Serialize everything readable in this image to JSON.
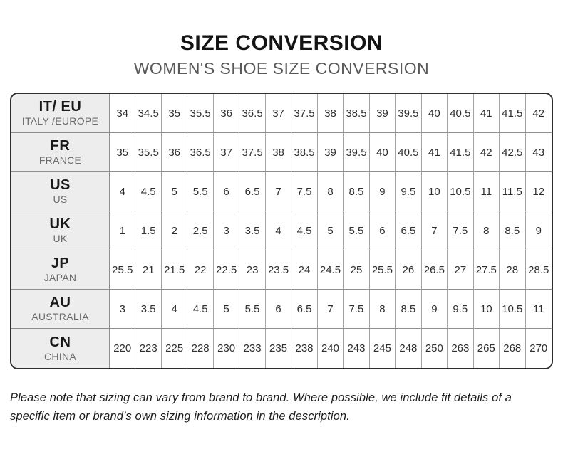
{
  "header": {
    "title": "SIZE CONVERSION",
    "subtitle": "WOMEN'S SHOE SIZE CONVERSION"
  },
  "table": {
    "rows": [
      {
        "code": "IT/ EU",
        "region": "ITALY /EUROPE",
        "values": [
          "34",
          "34.5",
          "35",
          "35.5",
          "36",
          "36.5",
          "37",
          "37.5",
          "38",
          "38.5",
          "39",
          "39.5",
          "40",
          "40.5",
          "41",
          "41.5",
          "42"
        ]
      },
      {
        "code": "FR",
        "region": "FRANCE",
        "values": [
          "35",
          "35.5",
          "36",
          "36.5",
          "37",
          "37.5",
          "38",
          "38.5",
          "39",
          "39.5",
          "40",
          "40.5",
          "41",
          "41.5",
          "42",
          "42.5",
          "43"
        ]
      },
      {
        "code": "US",
        "region": "US",
        "values": [
          "4",
          "4.5",
          "5",
          "5.5",
          "6",
          "6.5",
          "7",
          "7.5",
          "8",
          "8.5",
          "9",
          "9.5",
          "10",
          "10.5",
          "11",
          "11.5",
          "12"
        ]
      },
      {
        "code": "UK",
        "region": "UK",
        "values": [
          "1",
          "1.5",
          "2",
          "2.5",
          "3",
          "3.5",
          "4",
          "4.5",
          "5",
          "5.5",
          "6",
          "6.5",
          "7",
          "7.5",
          "8",
          "8.5",
          "9"
        ]
      },
      {
        "code": "JP",
        "region": "JAPAN",
        "values": [
          "25.5",
          "21",
          "21.5",
          "22",
          "22.5",
          "23",
          "23.5",
          "24",
          "24.5",
          "25",
          "25.5",
          "26",
          "26.5",
          "27",
          "27.5",
          "28",
          "28.5"
        ]
      },
      {
        "code": "AU",
        "region": "AUSTRALIA",
        "values": [
          "3",
          "3.5",
          "4",
          "4.5",
          "5",
          "5.5",
          "6",
          "6.5",
          "7",
          "7.5",
          "8",
          "8.5",
          "9",
          "9.5",
          "10",
          "10.5",
          "11"
        ]
      },
      {
        "code": "CN",
        "region": "CHINA",
        "values": [
          "220",
          "223",
          "225",
          "228",
          "230",
          "233",
          "235",
          "238",
          "240",
          "243",
          "245",
          "248",
          "250",
          "263",
          "265",
          "268",
          "270"
        ]
      }
    ]
  },
  "footnote": "Please note that sizing can vary from brand to brand. Where possible, we include fit details of a specific item or brand’s own sizing information in the description.",
  "colors": {
    "title_text": "#141414",
    "subtitle_text": "#595959",
    "outer_border": "#2e2e2e",
    "grid_line": "#8f8f8f",
    "header_cell_bg": "#ededed",
    "region_text": "#6b6b6b",
    "value_text": "#2e2e2e"
  }
}
